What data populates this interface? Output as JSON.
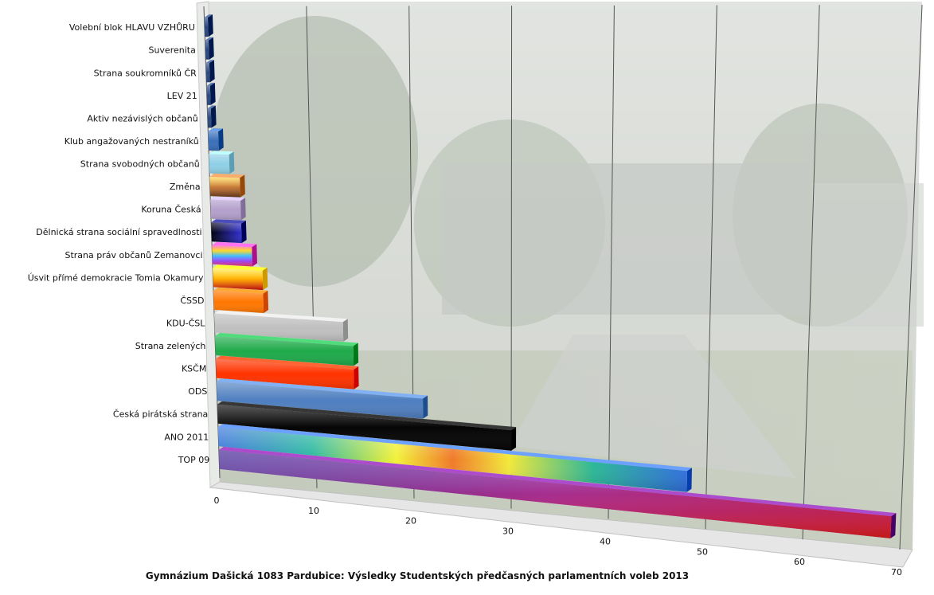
{
  "chart_data": {
    "type": "bar",
    "orientation": "horizontal",
    "title": "Gymnázium Dašická 1083  Pardubice: Výsledky Studentských předčasných parlamentních voleb 2013",
    "xlabel": "",
    "ylabel": "",
    "xlim": [
      0,
      70
    ],
    "x_ticks": [
      "0",
      "10",
      "20",
      "30",
      "40",
      "50",
      "60",
      "70"
    ],
    "grid": true,
    "legend": "none",
    "categories": [
      "Volební blok HLAVU VZHŮRU",
      "Suverenita",
      "Strana soukromníků ČR",
      "LEV 21",
      "Aktiv nezávislých občanů",
      "Klub angažovaných nestraníků",
      "Strana svobodných občanů",
      "Změna",
      "Koruna Česká",
      "Dělnická strana sociální spravedlnosti",
      "Strana práv občanů Zemanovci",
      "Úsvit přímé demokracie Tomia  Okamury",
      "ČSSD",
      "KDU-ČSL",
      "Strana zelených",
      "KSČM",
      "ODS",
      "Česká pirátská  strana",
      "ANO 2011",
      "TOP 09"
    ],
    "values": [
      0,
      0,
      0,
      0,
      0,
      1,
      2,
      3,
      3,
      3,
      4,
      5,
      5,
      13,
      14,
      14,
      21,
      30,
      48,
      69
    ],
    "bar_colors": [
      "#2a4a80",
      "#2a4a80",
      "#2a4a80",
      "#2a4a80",
      "#2a4a80",
      "#3a6fb8",
      "#8fd0e6",
      "#c87a3a",
      "#b4a0cc",
      "#1a1a8a",
      "#e040c0",
      "#ffcc00",
      "#ff7700",
      "#c0c0c0",
      "#1faa4a",
      "#ff3300",
      "#4f7fc0",
      "#050505",
      "#3a6fe0",
      "#7a1a9a"
    ]
  }
}
